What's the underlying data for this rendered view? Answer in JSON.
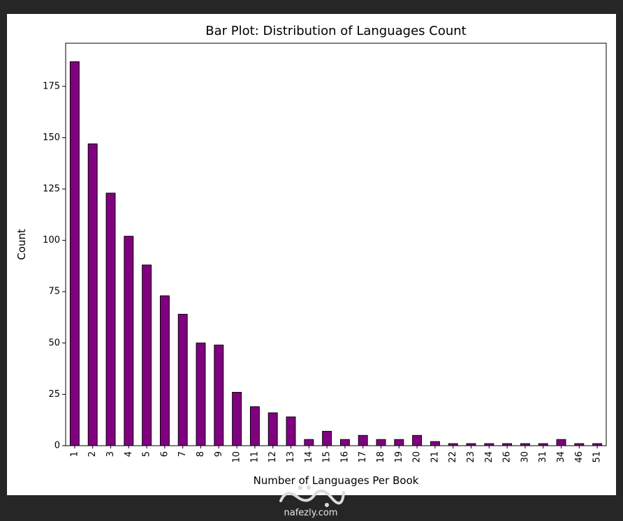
{
  "chart_data": {
    "type": "bar",
    "title": "Bar Plot: Distribution of Languages Count",
    "xlabel": "Number of Languages Per Book",
    "ylabel": "Count",
    "categories": [
      "1",
      "2",
      "3",
      "4",
      "5",
      "6",
      "7",
      "8",
      "9",
      "10",
      "11",
      "12",
      "13",
      "14",
      "15",
      "16",
      "17",
      "18",
      "19",
      "20",
      "21",
      "22",
      "23",
      "24",
      "26",
      "30",
      "31",
      "34",
      "46",
      "51"
    ],
    "values": [
      187,
      147,
      123,
      102,
      88,
      73,
      64,
      50,
      49,
      26,
      19,
      16,
      14,
      3,
      7,
      3,
      5,
      3,
      3,
      5,
      2,
      1,
      1,
      1,
      1,
      1,
      1,
      3,
      1,
      1
    ],
    "ylim": [
      0,
      196
    ],
    "yticks": [
      0,
      25,
      50,
      75,
      100,
      125,
      150,
      175
    ],
    "grid": false,
    "bar_color": "#800080",
    "edge_color": "#000000"
  },
  "watermark": {
    "text": "nafezly.com"
  }
}
